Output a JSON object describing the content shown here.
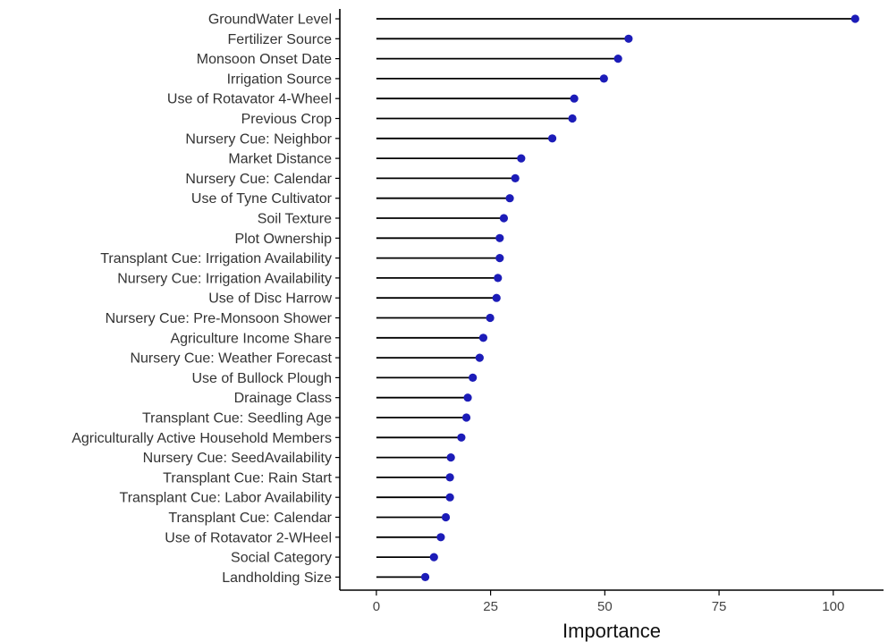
{
  "chart_data": {
    "type": "lollipop",
    "xlabel": "Importance",
    "ylabel": "",
    "xlim": [
      -8,
      111
    ],
    "xticks": [
      0,
      25,
      50,
      75,
      100
    ],
    "grid": false,
    "point_color": "#1c1cb8",
    "stem_color": "#000000",
    "categories": [
      "GroundWater Level",
      "Fertilizer Source",
      "Monsoon Onset Date",
      "Irrigation Source",
      "Use of Rotavator 4-Wheel",
      "Previous Crop",
      "Nursery Cue: Neighbor",
      "Market Distance",
      "Nursery Cue: Calendar",
      "Use of Tyne Cultivator",
      "Soil Texture",
      "Plot Ownership",
      "Transplant Cue: Irrigation Availability",
      "Nursery Cue: Irrigation Availability",
      "Use of Disc Harrow",
      "Nursery Cue: Pre-Monsoon Shower",
      "Agriculture Income Share",
      "Nursery Cue: Weather Forecast",
      "Use of Bullock Plough",
      "Drainage Class",
      "Transplant Cue: Seedling Age",
      "Agriculturally Active Household Members",
      "Nursery Cue: SeedAvailability",
      "Transplant Cue: Rain Start",
      "Transplant Cue: Labor Availability",
      "Transplant Cue: Calendar",
      "Use of Rotavator 2-WHeel",
      "Social Category",
      "Landholding Size"
    ],
    "values": [
      104.8,
      55.2,
      52.9,
      49.8,
      43.3,
      42.9,
      38.5,
      31.7,
      30.4,
      29.2,
      27.9,
      27.0,
      27.0,
      26.6,
      26.3,
      24.9,
      23.4,
      22.6,
      21.1,
      20.0,
      19.7,
      18.6,
      16.3,
      16.1,
      16.1,
      15.2,
      14.1,
      12.6,
      10.7
    ]
  }
}
